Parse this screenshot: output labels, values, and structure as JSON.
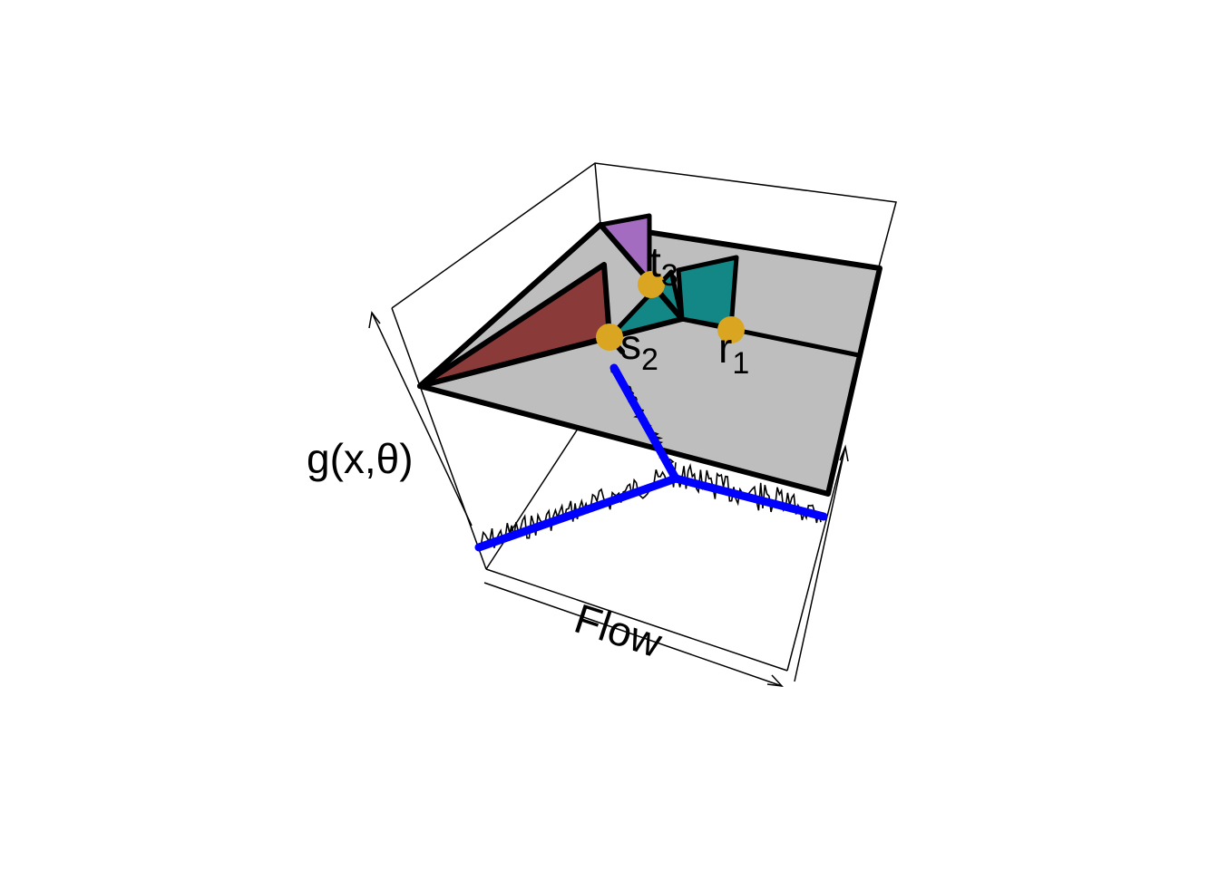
{
  "labels": {
    "y_axis": "g(x,θ)",
    "x_axis": "Flow",
    "points": [
      {
        "id": "s2",
        "base": "s",
        "sub": "2"
      },
      {
        "id": "r1",
        "base": "r",
        "sub": "1"
      },
      {
        "id": "t3",
        "base": "t",
        "sub": "3"
      }
    ]
  },
  "colors": {
    "plane": "#bebebe",
    "red_triangle": "#8b3a3a",
    "teal_triangle": "#138785",
    "purple_triangle": "#a36cc1",
    "points": "#daa520",
    "branch": "#0000ff",
    "noise": "#000000"
  }
}
